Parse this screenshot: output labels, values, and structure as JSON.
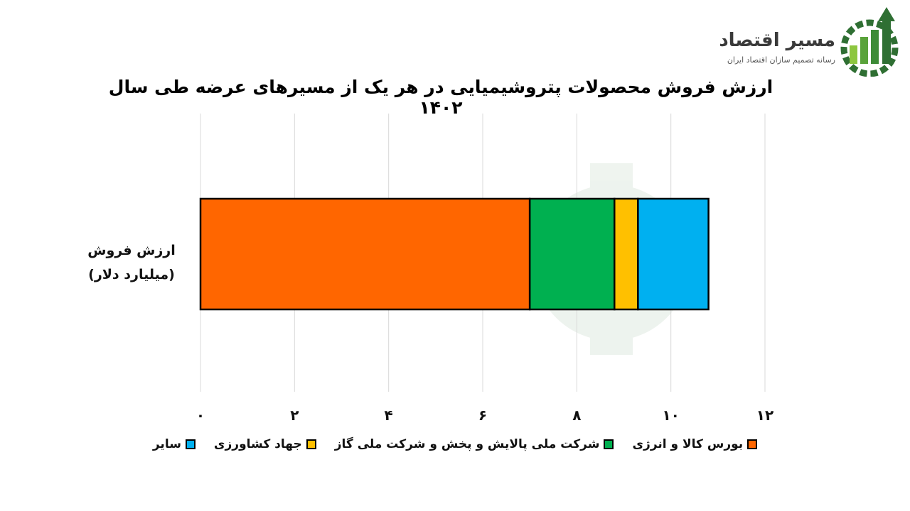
{
  "brand": {
    "name": "مسیر اقتصاد",
    "tagline": "رسانه تصمیم سازان اقتصاد ایران",
    "colors": {
      "green": "#5aa33b",
      "dark_green": "#2f6f33"
    }
  },
  "chart_data": {
    "type": "bar",
    "orientation": "horizontal",
    "stacked": true,
    "title": "ارزش فروش محصولات پتروشیمیایی در هر یک از مسیرهای عرضه طی سال ۱۴۰۲",
    "categories": [
      "ارزش فروش (میلیارد دلار)"
    ],
    "category_lines": [
      "ارزش فروش",
      "(میلیارد دلار)"
    ],
    "series": [
      {
        "name": "بورس کالا و انرژی",
        "values": [
          7.0
        ],
        "color": "#ff6600"
      },
      {
        "name": "شرکت ملی پالایش و پخش و شرکت ملی گاز",
        "values": [
          1.8
        ],
        "color": "#00b050"
      },
      {
        "name": "جهاد کشاورزی",
        "values": [
          0.5
        ],
        "color": "#ffc000"
      },
      {
        "name": "سایر",
        "values": [
          1.5
        ],
        "color": "#00b0f0"
      }
    ],
    "xlim": [
      0,
      12
    ],
    "xticks": [
      0,
      2,
      4,
      6,
      8,
      10,
      12
    ],
    "xtick_labels": [
      "۰",
      "۲",
      "۴",
      "۶",
      "۸",
      "۱۰",
      "۱۲"
    ],
    "grid": true,
    "legend_position": "bottom"
  }
}
